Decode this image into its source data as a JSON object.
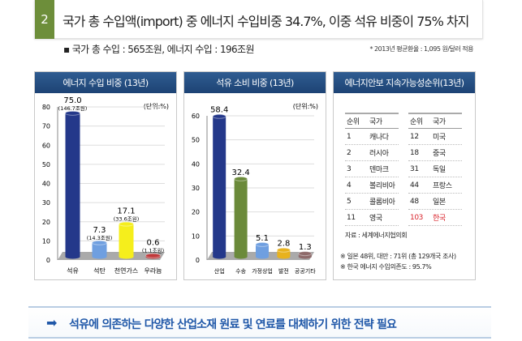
{
  "header": {
    "number": "2",
    "title": "국가 총 수입액(import) 중 에너지 수입비중 34.7%, 이중 석유 비중이 75% 차지"
  },
  "subtitle": "▪ 국가 총 수입 : 565조원, 에너지 수입 : 196조원",
  "note": "* 2013년 평균환율 : 1,095 원/달러 적용",
  "chart_data": [
    {
      "type": "bar",
      "title": "에너지 수입 비중 (13년)",
      "unit": "(단위:%)",
      "ylim": [
        0,
        80
      ],
      "yticks": [
        0,
        10,
        20,
        30,
        40,
        50,
        60,
        70,
        80
      ],
      "categories": [
        "석유",
        "석탄",
        "천연가스",
        "우라늄"
      ],
      "values": [
        75.0,
        7.3,
        17.1,
        0.6
      ],
      "value_labels": [
        "75.0",
        "7.3",
        "17.1",
        "0.6"
      ],
      "sub_labels": [
        "(146.7조원)",
        "(14.3조원)",
        "(33.6조원)",
        "(1.1조원)"
      ],
      "colors": [
        "#24388a",
        "#6f9fe0",
        "#f5ee1c",
        "#c0393b"
      ]
    },
    {
      "type": "bar",
      "title": "석유 소비 비중 (13년)",
      "unit": "(단위:%)",
      "ylim": [
        0,
        60
      ],
      "yticks": [
        0,
        10,
        20,
        30,
        40,
        50,
        60
      ],
      "categories": [
        "산업",
        "수송",
        "가정상업",
        "발전",
        "공공기타"
      ],
      "values": [
        58.4,
        32.4,
        5.1,
        2.8,
        1.3
      ],
      "value_labels": [
        "58.4",
        "32.4",
        "5.1",
        "2.8",
        "1.3"
      ],
      "colors": [
        "#24388a",
        "#6b8a3a",
        "#6f9fe0",
        "#e8b21e",
        "#8e6a6a"
      ]
    }
  ],
  "ranking": {
    "title": "에너지안보 지속가능성순위(13년)",
    "headers": [
      "순위",
      "국가"
    ],
    "left": [
      [
        "1",
        "캐나다"
      ],
      [
        "2",
        "러시아"
      ],
      [
        "3",
        "덴마크"
      ],
      [
        "4",
        "볼리비아"
      ],
      [
        "5",
        "콜롬비아"
      ],
      [
        "11",
        "영국"
      ]
    ],
    "right": [
      [
        "12",
        "미국"
      ],
      [
        "18",
        "중국"
      ],
      [
        "31",
        "독일"
      ],
      [
        "44",
        "프랑스"
      ],
      [
        "48",
        "일본"
      ],
      [
        "103",
        "한국"
      ]
    ],
    "source": "자료 : 세계에너지협의회",
    "footnotes": [
      "※ 일본 48위, 대만 : 71위 (총 129개국 조사)",
      "※ 한국 에너지 수입의존도 : 95.7%"
    ]
  },
  "conclusion": {
    "icon": "arrow-right-icon",
    "text": "석유에 의존하는 다양한 산업소재 원료 및 연료를 대체하기 위한 전략 필요"
  }
}
